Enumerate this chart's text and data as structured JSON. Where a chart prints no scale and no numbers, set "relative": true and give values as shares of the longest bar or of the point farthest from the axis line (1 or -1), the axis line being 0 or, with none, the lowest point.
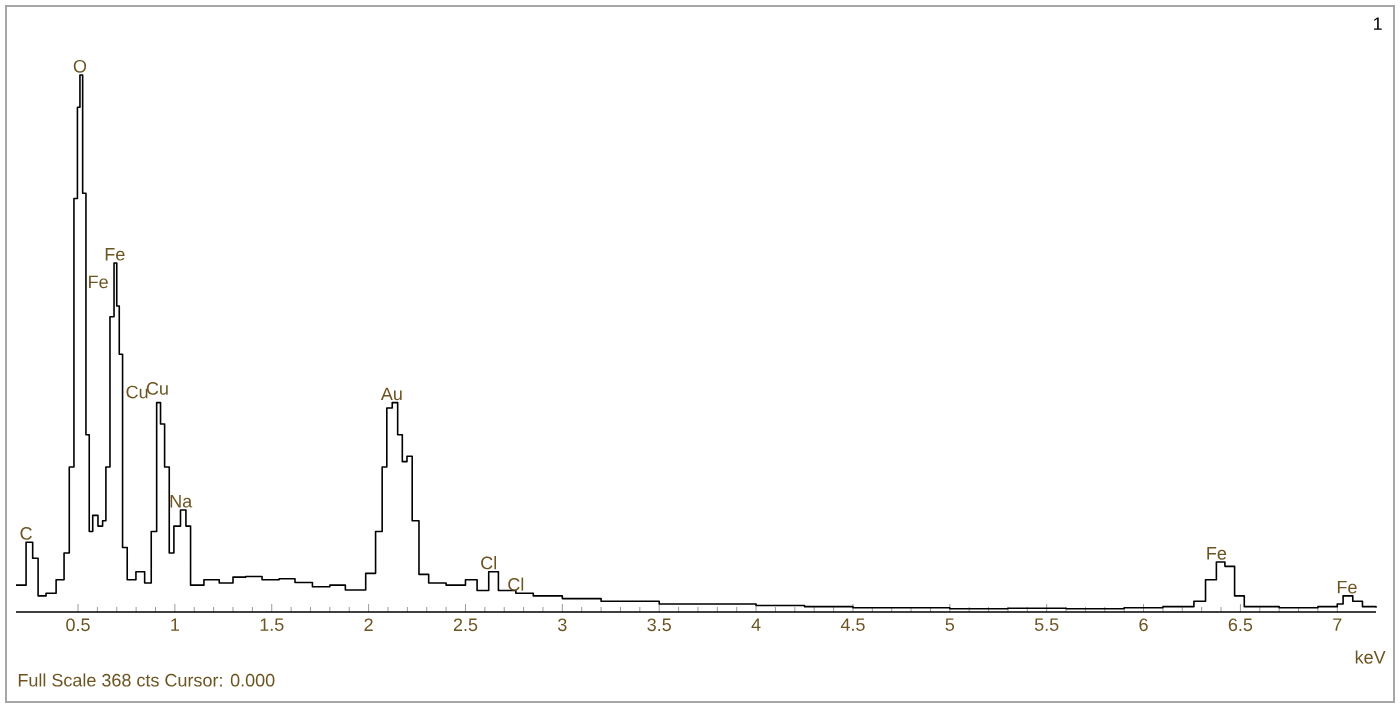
{
  "chart_data": {
    "type": "step",
    "relative": true,
    "xlabel": "keV",
    "xlim": [
      0.18,
      7.2
    ],
    "xticks": [
      0.5,
      1,
      1.5,
      2,
      2.5,
      3,
      3.5,
      4,
      4.5,
      5,
      5.5,
      6,
      6.5,
      7
    ],
    "series": [
      {
        "color": "#000000",
        "x": [
          0.18,
          0.232,
          0.266,
          0.294,
          0.335,
          0.387,
          0.428,
          0.455,
          0.479,
          0.497,
          0.51,
          0.524,
          0.541,
          0.558,
          0.576,
          0.603,
          0.627,
          0.644,
          0.665,
          0.686,
          0.7,
          0.713,
          0.73,
          0.754,
          0.799,
          0.844,
          0.878,
          0.906,
          0.926,
          0.947,
          0.971,
          0.995,
          1.029,
          1.057,
          1.081,
          1.15,
          1.229,
          1.3,
          1.366,
          1.45,
          1.538,
          1.62,
          1.71,
          1.8,
          1.88,
          1.985,
          2.036,
          2.07,
          2.094,
          2.122,
          2.15,
          2.174,
          2.198,
          2.225,
          2.26,
          2.31,
          2.4,
          2.5,
          2.56,
          2.62,
          2.67,
          2.76,
          2.85,
          3.0,
          3.2,
          3.5,
          3.75,
          4.0,
          4.25,
          4.5,
          4.75,
          5.0,
          5.3,
          5.6,
          5.9,
          6.1,
          6.26,
          6.32,
          6.376,
          6.42,
          6.47,
          6.52,
          6.7,
          6.9,
          7.0,
          7.03,
          7.08,
          7.13,
          7.2
        ],
        "values": [
          0.05,
          0.13,
          0.1,
          0.03,
          0.035,
          0.06,
          0.11,
          0.27,
          0.77,
          0.94,
          1.0,
          0.78,
          0.33,
          0.15,
          0.18,
          0.16,
          0.17,
          0.27,
          0.55,
          0.65,
          0.57,
          0.48,
          0.12,
          0.06,
          0.075,
          0.054,
          0.15,
          0.39,
          0.35,
          0.27,
          0.11,
          0.16,
          0.19,
          0.16,
          0.05,
          0.06,
          0.054,
          0.065,
          0.066,
          0.06,
          0.062,
          0.055,
          0.047,
          0.05,
          0.041,
          0.072,
          0.15,
          0.27,
          0.38,
          0.39,
          0.33,
          0.28,
          0.29,
          0.17,
          0.07,
          0.054,
          0.05,
          0.06,
          0.04,
          0.075,
          0.04,
          0.035,
          0.03,
          0.025,
          0.02,
          0.015,
          0.015,
          0.012,
          0.01,
          0.008,
          0.008,
          0.006,
          0.007,
          0.006,
          0.008,
          0.01,
          0.02,
          0.06,
          0.093,
          0.085,
          0.03,
          0.01,
          0.008,
          0.01,
          0.015,
          0.03,
          0.02,
          0.01,
          0.008
        ]
      }
    ],
    "annotations": [
      {
        "text": "C",
        "x": 0.232,
        "y": 0.13
      },
      {
        "text": "O",
        "x": 0.51,
        "y": 1.0
      },
      {
        "text": "Fe",
        "x": 0.69,
        "y": 0.65
      },
      {
        "text": "Cu",
        "x": 0.91,
        "y": 0.4
      },
      {
        "text": "Na",
        "x": 1.03,
        "y": 0.19
      },
      {
        "text": "Au",
        "x": 2.12,
        "y": 0.39
      },
      {
        "text": "Cl",
        "x": 2.62,
        "y": 0.075
      },
      {
        "text": "Cl",
        "x": 2.76,
        "y": 0.035
      },
      {
        "text": "Fe",
        "x": 6.376,
        "y": 0.093
      },
      {
        "text": "Fe",
        "x": 7.05,
        "y": 0.03
      },
      "Fe",
      "Cu",
      "1",
      "Full Scale 368 cts Cursor: 0.000"
    ]
  }
}
